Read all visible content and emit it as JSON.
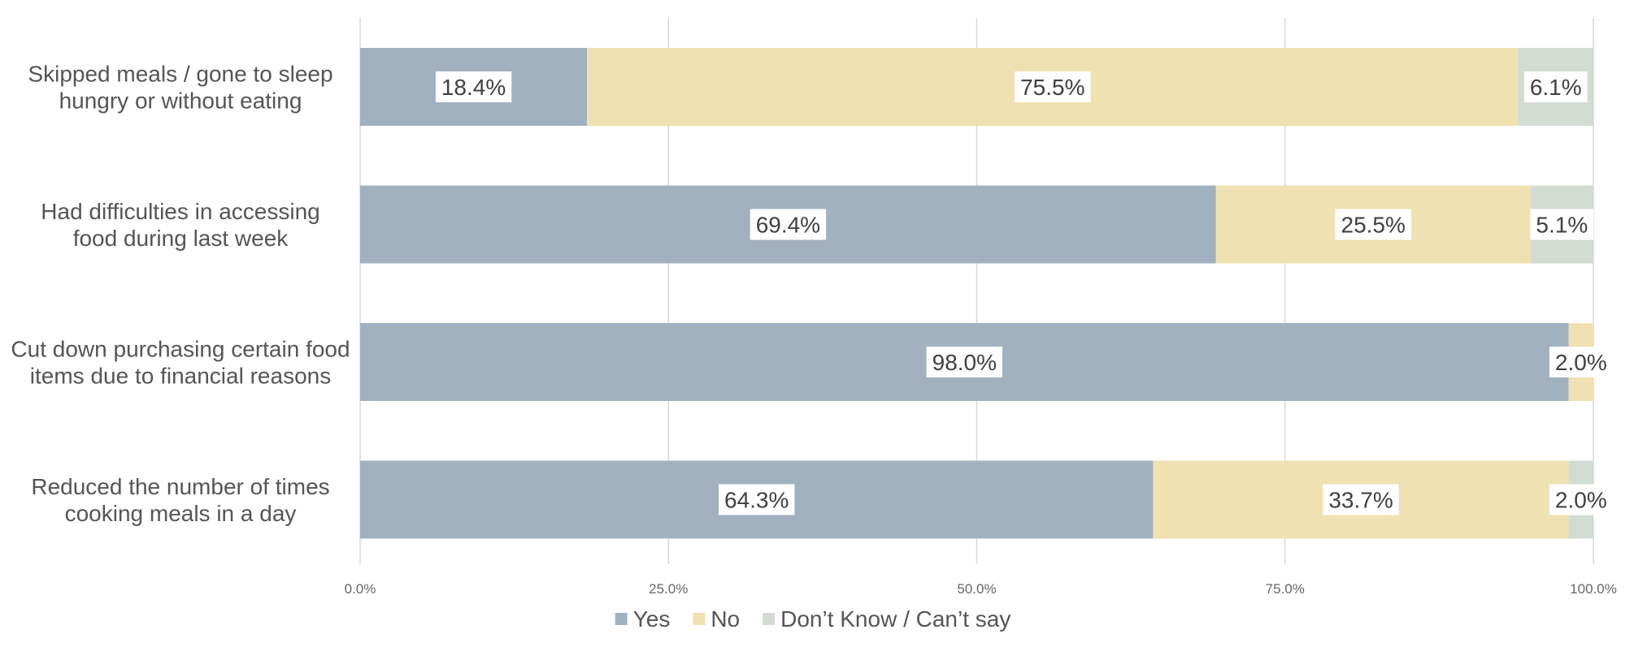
{
  "chart_data": {
    "type": "bar",
    "orientation": "horizontal",
    "stacked": true,
    "categories": [
      [
        "Skipped meals / gone to sleep",
        "hungry or without eating"
      ],
      [
        "Had difficulties in accessing",
        "food during last week"
      ],
      [
        "Cut down purchasing certain food",
        "items due to financial reasons"
      ],
      [
        "Reduced the number of times",
        "cooking meals in a day"
      ]
    ],
    "series": [
      {
        "name": "Yes",
        "color": "#a2b1c0",
        "values": [
          18.4,
          69.4,
          98.0,
          64.3
        ]
      },
      {
        "name": "No",
        "color": "#efe1b1",
        "values": [
          75.5,
          25.5,
          2.0,
          33.7
        ]
      },
      {
        "name": "Don’t Know / Can’t say",
        "color": "#d3dcd3",
        "values": [
          6.1,
          5.1,
          0.0,
          2.0
        ]
      }
    ],
    "data_labels": [
      [
        "18.4%",
        "75.5%",
        "6.1%"
      ],
      [
        "69.4%",
        "25.5%",
        "5.1%"
      ],
      [
        "98.0%",
        "2.0%",
        ""
      ],
      [
        "64.3%",
        "33.7%",
        "2.0%"
      ]
    ],
    "xlim": [
      0,
      100
    ],
    "x_ticks": [
      "0.0%",
      "25.0%",
      "50.0%",
      "75.0%",
      "100.0%"
    ],
    "grid": true,
    "legend": "bottom"
  }
}
